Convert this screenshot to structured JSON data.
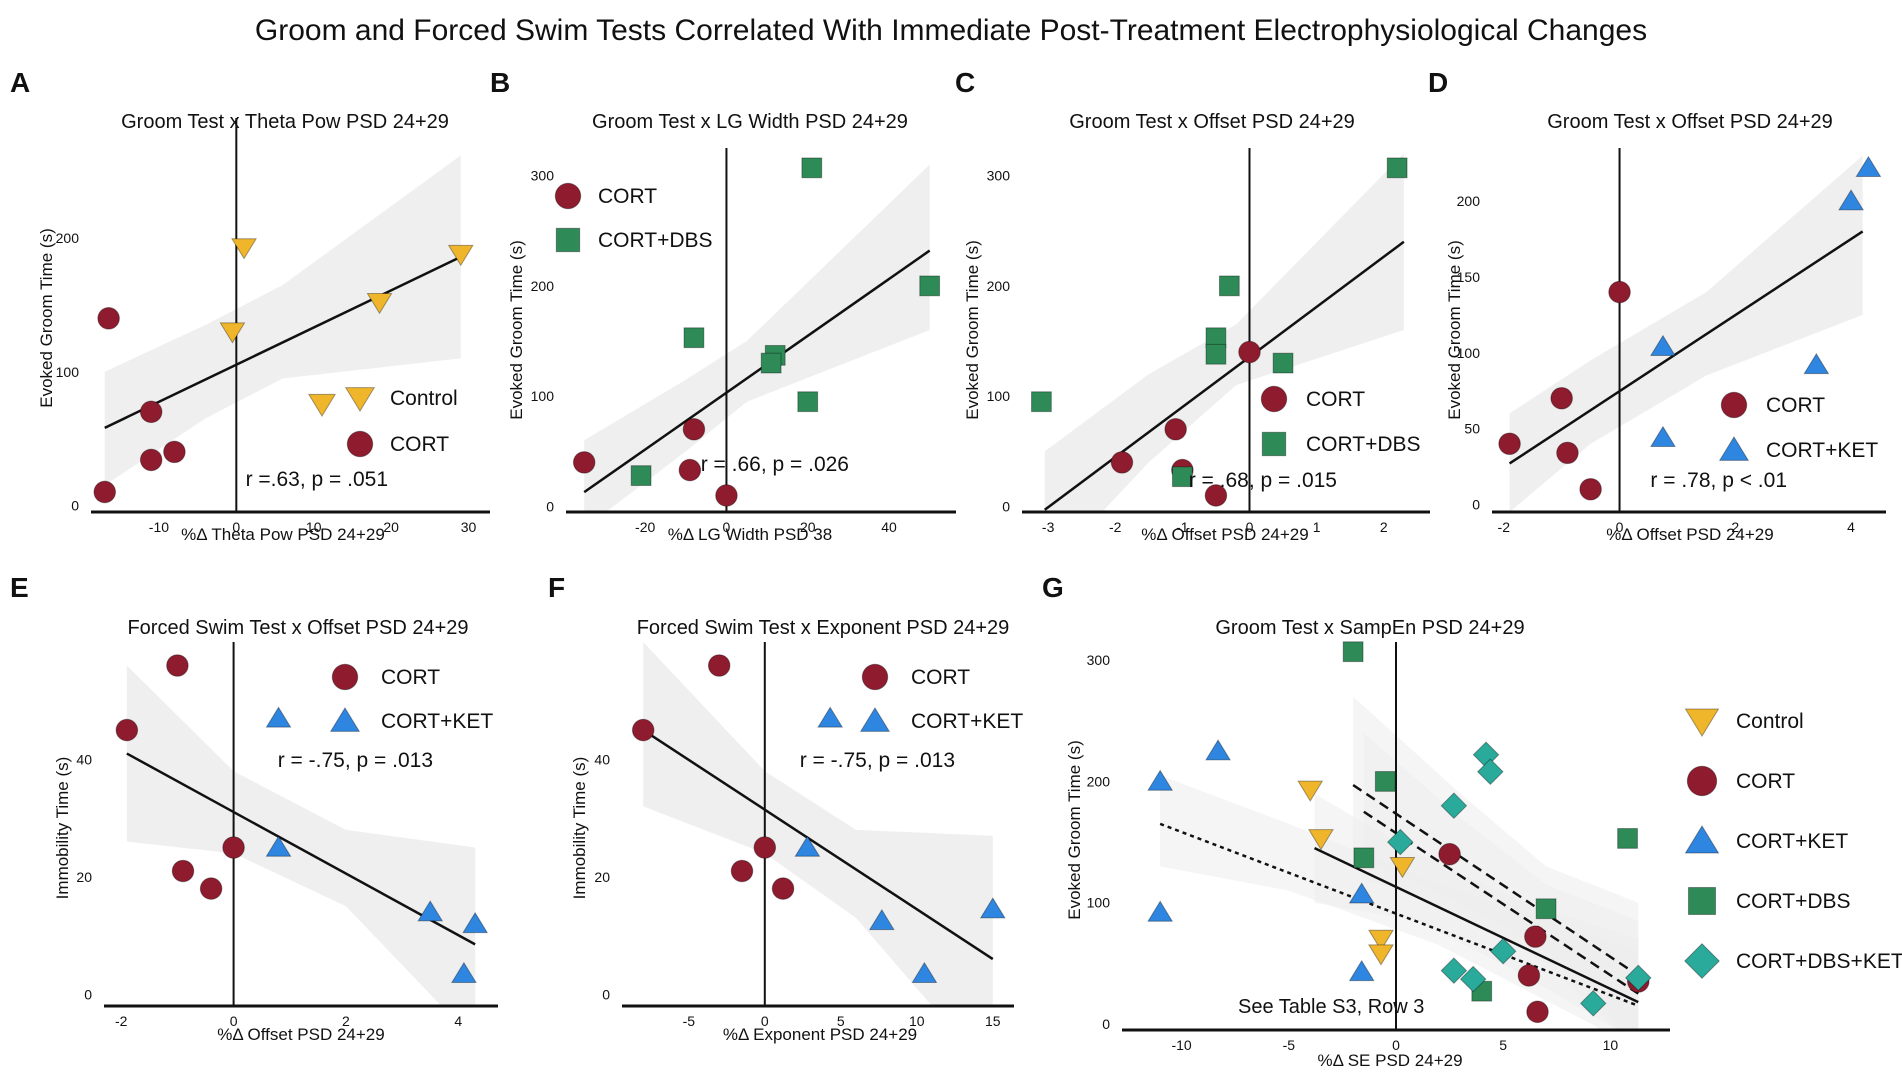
{
  "figure": {
    "suptitle": "Groom and Forced Swim Tests Correlated With Immediate Post-Treatment Electrophysiological Changes"
  },
  "colors": {
    "Control": "#f0b62b",
    "CORT": "#8e1b2e",
    "CORT+DBS": "#2e8a57",
    "CORT+KET": "#2f86e0",
    "CORT+DBS+KET": "#2aaa9a",
    "band": "#ececec",
    "line": "#111111"
  },
  "markers": {
    "Control": "triangle-down",
    "CORT": "circle",
    "CORT+DBS": "square",
    "CORT+KET": "triangle-up",
    "CORT+DBS+KET": "diamond"
  },
  "chart_data": [
    {
      "type": "scatter",
      "letter": "A",
      "title": "Groom Test x Theta Pow PSD 24+29",
      "xlabel": "%Δ Theta Pow PSD 24+29",
      "ylabel": "Evoked Groom Time (s)",
      "xlim": [
        -18,
        32
      ],
      "ylim": [
        -5,
        290
      ],
      "xticks": [
        -10,
        0,
        10,
        20,
        30
      ],
      "yticks": [
        0,
        100,
        200
      ],
      "stat": "r =.63, p = .051",
      "legend": [
        "Control",
        "CORT"
      ],
      "series": [
        {
          "name": "Control",
          "points": [
            [
              1,
              193
            ],
            [
              -0.5,
              130
            ],
            [
              18.5,
              152
            ],
            [
              29,
              188
            ]
          ]
        },
        {
          "name": "CORT",
          "points": [
            [
              -16.5,
              140
            ],
            [
              -11,
              70
            ],
            [
              -11,
              34
            ],
            [
              -8,
              40
            ],
            [
              -17,
              10
            ]
          ]
        }
      ],
      "fits": [
        {
          "x": [
            -17,
            29
          ],
          "y": [
            58,
            186
          ],
          "band": [
            [
              -17,
              15,
              100
            ],
            [
              -4,
              65,
              135
            ],
            [
              6,
              95,
              165
            ],
            [
              29,
              110,
              262
            ]
          ]
        }
      ]
    },
    {
      "type": "scatter",
      "letter": "B",
      "title": "Groom Test x LG Width PSD 24+29",
      "xlabel": "%Δ LG Width PSD 38",
      "ylabel": "Evoked Groom Time (s)",
      "xlim": [
        -38,
        55
      ],
      "ylim": [
        -5,
        325
      ],
      "xticks": [
        -20,
        0,
        20,
        40
      ],
      "yticks": [
        0,
        100,
        200,
        300
      ],
      "stat": "r = .66, p = .026",
      "legend": [
        "CORT",
        "CORT+DBS"
      ],
      "series": [
        {
          "name": "CORT",
          "points": [
            [
              -35,
              40
            ],
            [
              -8,
              70
            ],
            [
              -9,
              33
            ],
            [
              0,
              10
            ]
          ]
        },
        {
          "name": "CORT+DBS",
          "points": [
            [
              21,
              307
            ],
            [
              50,
              200
            ],
            [
              -8,
              153
            ],
            [
              12,
              137
            ],
            [
              11,
              130
            ],
            [
              20,
              95
            ],
            [
              -21,
              28
            ]
          ]
        }
      ],
      "fits": [
        {
          "x": [
            -35,
            50
          ],
          "y": [
            13,
            232
          ],
          "band": [
            [
              -35,
              -20,
              60
            ],
            [
              -10,
              50,
              115
            ],
            [
              5,
              95,
              150
            ],
            [
              50,
              160,
              310
            ]
          ]
        }
      ]
    },
    {
      "type": "scatter",
      "letter": "C",
      "title": "Groom Test x Offset PSD 24+29",
      "xlabel": "%Δ Offset PSD 24+29",
      "ylabel": "Evoked Groom Time (s)",
      "xlim": [
        -3.3,
        2.6
      ],
      "ylim": [
        -5,
        325
      ],
      "xticks": [
        -3,
        -2,
        -1,
        0,
        1,
        2
      ],
      "yticks": [
        0,
        100,
        200,
        300
      ],
      "stat": "r = .68, p = .015",
      "legend": [
        "CORT",
        "CORT+DBS"
      ],
      "series": [
        {
          "name": "CORT",
          "points": [
            [
              -1.1,
              70
            ],
            [
              -1.0,
              33
            ],
            [
              -1.9,
              40
            ],
            [
              -0.5,
              10
            ],
            [
              0,
              140
            ]
          ]
        },
        {
          "name": "CORT+DBS",
          "points": [
            [
              2.2,
              307
            ],
            [
              -0.3,
              200
            ],
            [
              -0.5,
              153
            ],
            [
              -0.5,
              138
            ],
            [
              0.5,
              130
            ],
            [
              -3.1,
              95
            ],
            [
              -1.0,
              27
            ]
          ]
        }
      ],
      "fits": [
        {
          "x": [
            -3.05,
            2.3
          ],
          "y": [
            -3,
            240
          ],
          "band": [
            [
              -3.05,
              -60,
              50
            ],
            [
              -1.5,
              40,
              120
            ],
            [
              -0.2,
              110,
              165
            ],
            [
              2.3,
              160,
              320
            ]
          ]
        }
      ]
    },
    {
      "type": "scatter",
      "letter": "D",
      "title": "Groom Test x Offset PSD 24+29",
      "xlabel": "%Δ Offset PSD 24+29",
      "ylabel": "Evoked Groom Time (s)",
      "xlim": [
        -2.1,
        4.5
      ],
      "ylim": [
        -5,
        235
      ],
      "xticks": [
        -2,
        0,
        2,
        4
      ],
      "yticks": [
        0,
        50,
        100,
        150,
        200
      ],
      "stat": "r = .78, p < .01",
      "legend": [
        "CORT",
        "CORT+KET"
      ],
      "series": [
        {
          "name": "CORT",
          "points": [
            [
              -1.0,
              70
            ],
            [
              -0.9,
              34
            ],
            [
              -1.9,
              40
            ],
            [
              -0.5,
              10
            ],
            [
              0,
              140
            ]
          ]
        },
        {
          "name": "CORT+KET",
          "points": [
            [
              4.3,
              222
            ],
            [
              4.0,
              200
            ],
            [
              0.75,
              104
            ],
            [
              3.4,
              92
            ],
            [
              0.75,
              44
            ]
          ]
        }
      ],
      "fits": [
        {
          "x": [
            -1.9,
            4.2
          ],
          "y": [
            27,
            180
          ],
          "band": [
            [
              -1.9,
              -5,
              60
            ],
            [
              -0.5,
              40,
              95
            ],
            [
              1.5,
              85,
              140
            ],
            [
              4.2,
              125,
              230
            ]
          ]
        }
      ]
    },
    {
      "type": "scatter",
      "letter": "E",
      "title": "Forced Swim Test x Offset PSD 24+29",
      "xlabel": "%Δ Offset PSD 24+29",
      "ylabel": "Immobility Time (s)",
      "xlim": [
        -2.2,
        4.6
      ],
      "ylim": [
        -2,
        60
      ],
      "xticks": [
        -2,
        0,
        2,
        4
      ],
      "yticks": [
        0,
        20,
        40
      ],
      "stat": "r = -.75, p = .013",
      "legend": [
        "CORT",
        "CORT+KET"
      ],
      "series": [
        {
          "name": "CORT",
          "points": [
            [
              -1.0,
              56
            ],
            [
              -1.9,
              45
            ],
            [
              -0.9,
              21
            ],
            [
              -0.4,
              18
            ],
            [
              0,
              25
            ]
          ]
        },
        {
          "name": "CORT+KET",
          "points": [
            [
              0.8,
              47
            ],
            [
              0.8,
              25
            ],
            [
              3.5,
              14
            ],
            [
              4.3,
              12
            ],
            [
              4.1,
              3.5
            ]
          ]
        }
      ],
      "fits": [
        {
          "x": [
            -1.9,
            4.3
          ],
          "y": [
            41,
            8.5
          ],
          "band": [
            [
              -1.9,
              26,
              56
            ],
            [
              0,
              24,
              38
            ],
            [
              2,
              15,
              28
            ],
            [
              4.3,
              -8,
              25
            ]
          ]
        }
      ]
    },
    {
      "type": "scatter",
      "letter": "F",
      "title": "Forced Swim Test x Exponent PSD 24+29",
      "xlabel": "%Δ Exponent PSD 24+29",
      "ylabel": "Immobility Time (s)",
      "xlim": [
        -9,
        16
      ],
      "ylim": [
        -2,
        60
      ],
      "xticks": [
        -5,
        0,
        5,
        10,
        15
      ],
      "yticks": [
        0,
        20,
        40
      ],
      "stat": "r = -.75, p = .013",
      "legend": [
        "CORT",
        "CORT+KET"
      ],
      "series": [
        {
          "name": "CORT",
          "points": [
            [
              -3,
              56
            ],
            [
              -8,
              45
            ],
            [
              -1.5,
              21
            ],
            [
              1.2,
              18
            ],
            [
              0,
              25
            ]
          ]
        },
        {
          "name": "CORT+KET",
          "points": [
            [
              4.3,
              47
            ],
            [
              2.8,
              25
            ],
            [
              7.7,
              12.5
            ],
            [
              10.5,
              3.5
            ],
            [
              15,
              14.5
            ]
          ]
        }
      ],
      "fits": [
        {
          "x": [
            -8,
            15
          ],
          "y": [
            45,
            6
          ],
          "band": [
            [
              -8,
              32,
              60
            ],
            [
              0,
              24,
              38
            ],
            [
              6,
              13,
              28
            ],
            [
              15,
              -14,
              27
            ]
          ]
        }
      ]
    },
    {
      "type": "scatter",
      "letter": "G",
      "title": "Groom Test x SampEn PSD 24+29",
      "xlabel": "%Δ SE PSD 24+29",
      "ylabel": "Evoked Groom Time (s)",
      "xlim": [
        -12.5,
        12.5
      ],
      "ylim": [
        -5,
        315
      ],
      "xticks": [
        -10,
        -5,
        0,
        5,
        10
      ],
      "yticks": [
        0,
        100,
        200,
        300
      ],
      "note": "See Table S3, Row 3",
      "legend": [
        "Control",
        "CORT",
        "CORT+KET",
        "CORT+DBS",
        "CORT+DBS+KET"
      ],
      "series": [
        {
          "name": "Control",
          "points": [
            [
              -4,
              193
            ],
            [
              -3.5,
              153
            ],
            [
              0.3,
              130
            ],
            [
              -0.7,
              70
            ],
            [
              -0.7,
              58
            ]
          ]
        },
        {
          "name": "CORT",
          "points": [
            [
              2.5,
              140
            ],
            [
              6.5,
              72
            ],
            [
              6.2,
              40
            ],
            [
              6.6,
              10
            ],
            [
              11.3,
              35
            ]
          ]
        },
        {
          "name": "CORT+KET",
          "points": [
            [
              -11,
              200
            ],
            [
              -8.3,
              225
            ],
            [
              -11,
              92
            ],
            [
              -1.6,
              107
            ],
            [
              -1.6,
              43
            ]
          ]
        },
        {
          "name": "CORT+DBS",
          "points": [
            [
              -2,
              307
            ],
            [
              -0.5,
              200
            ],
            [
              -1.5,
              137
            ],
            [
              7,
              95
            ],
            [
              10.8,
              153
            ],
            [
              4,
              27
            ]
          ]
        },
        {
          "name": "CORT+DBS+KET",
          "points": [
            [
              4.2,
              222
            ],
            [
              4.4,
              208
            ],
            [
              2.7,
              180
            ],
            [
              0.2,
              150
            ],
            [
              5,
              60
            ],
            [
              2.7,
              44
            ],
            [
              3.6,
              37
            ],
            [
              9.2,
              17
            ],
            [
              11.3,
              38
            ]
          ]
        }
      ],
      "fits": [
        {
          "x": [
            -11,
            11.3
          ],
          "y": [
            165,
            15
          ],
          "style": "dotted",
          "band": [
            [
              -11,
              130,
              205
            ],
            [
              -5,
              110,
              165
            ],
            [
              2,
              65,
              115
            ],
            [
              11.3,
              -20,
              60
            ]
          ]
        },
        {
          "x": [
            -3.8,
            11.3
          ],
          "y": [
            145,
            18
          ],
          "style": "solid",
          "band": [
            [
              -3.8,
              100,
              190
            ],
            [
              1,
              85,
              140
            ],
            [
              6,
              40,
              100
            ],
            [
              11.3,
              -15,
              70
            ]
          ]
        },
        {
          "x": [
            -2,
            11.3
          ],
          "y": [
            197,
            40
          ],
          "style": "dashed",
          "band": [
            [
              -2,
              140,
              270
            ],
            [
              3,
              100,
              190
            ],
            [
              7,
              60,
              130
            ],
            [
              11.3,
              -15,
              100
            ]
          ]
        },
        {
          "x": [
            -1.5,
            11.3
          ],
          "y": [
            175,
            25
          ],
          "style": "dashed",
          "band": [
            [
              -1.5,
              120,
              240
            ],
            [
              3,
              90,
              170
            ],
            [
              7,
              50,
              115
            ],
            [
              11.3,
              -20,
              85
            ]
          ]
        }
      ]
    }
  ]
}
